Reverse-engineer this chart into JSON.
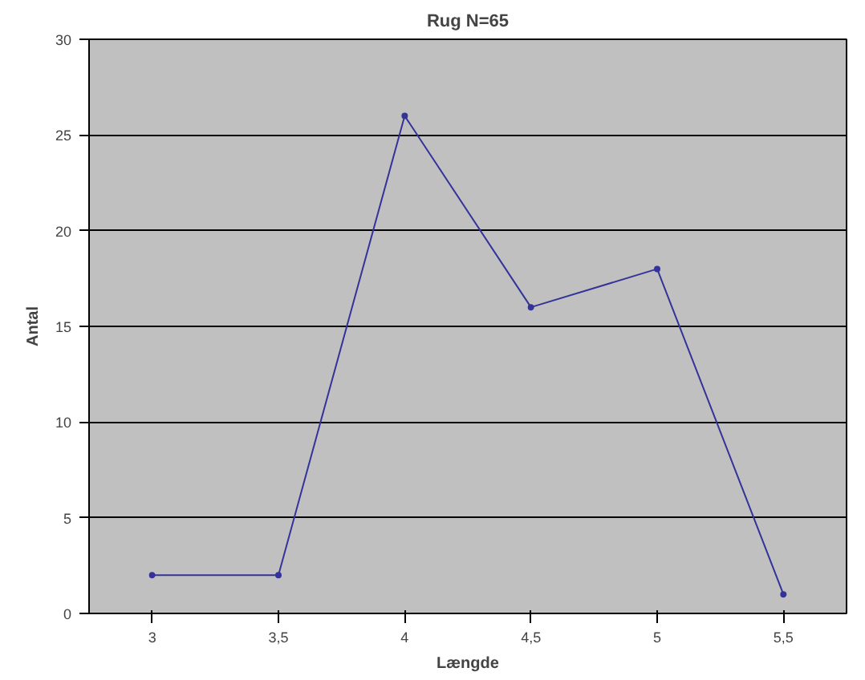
{
  "chart_data": {
    "type": "line",
    "title": "Rug N=65",
    "xlabel": "Længde",
    "ylabel": "Antal",
    "categories": [
      "3",
      "3,5",
      "4",
      "4,5",
      "5",
      "5,5"
    ],
    "series": [
      {
        "color": "#333399",
        "values": [
          2,
          2,
          26,
          16,
          18,
          1
        ]
      }
    ],
    "ylim": [
      0,
      30
    ],
    "yticks": [
      0,
      5,
      10,
      15,
      20,
      25,
      30
    ],
    "grid": "y",
    "marker": "circle",
    "line_style": "solid"
  }
}
